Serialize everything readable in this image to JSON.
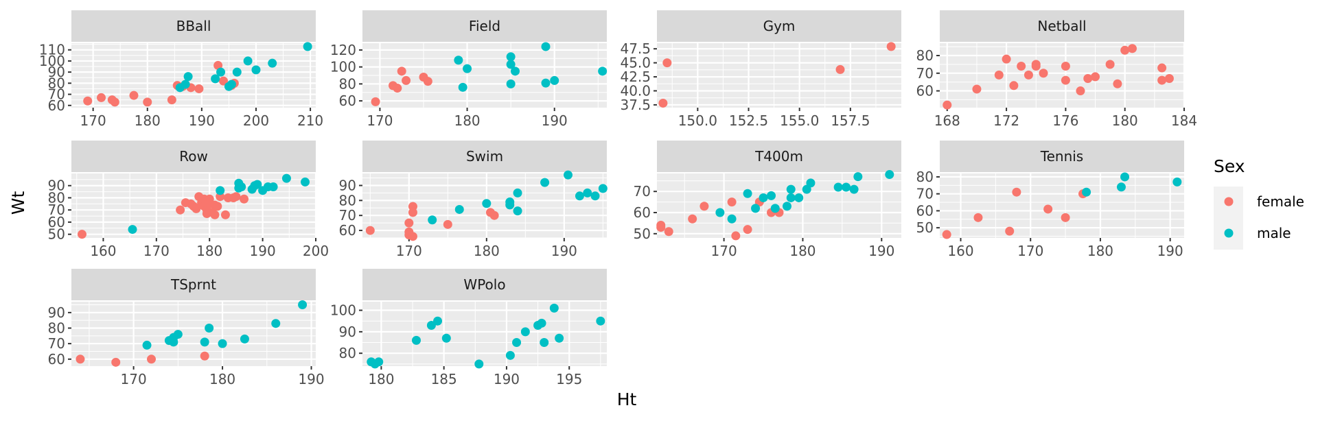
{
  "chart_data": {
    "type": "scatter",
    "xlabel": "Ht",
    "ylabel": "Wt",
    "legend": {
      "title": "Sex",
      "position": "right",
      "items": [
        {
          "name": "female",
          "color": "#F8766D"
        },
        {
          "name": "male",
          "color": "#00BFC4"
        }
      ]
    },
    "colors": {
      "female": "#F8766D",
      "male": "#00BFC4",
      "panel": "#EBEBEB",
      "strip": "#D9D9D9",
      "grid": "#FFFFFF"
    },
    "grid": true,
    "facets": [
      {
        "name": "BBall",
        "xlim": [
          166,
          211
        ],
        "ylim": [
          58,
          116
        ],
        "xticks": [
          "170",
          "180",
          "190",
          "200",
          "210"
        ],
        "yticks": [
          "60",
          "70",
          "80",
          "90",
          "100",
          "110"
        ],
        "female": [
          [
            169.0,
            64
          ],
          [
            171.5,
            67
          ],
          [
            174.0,
            63
          ],
          [
            173.5,
            65
          ],
          [
            177.5,
            69
          ],
          [
            180.0,
            63
          ],
          [
            184.5,
            65
          ],
          [
            185.5,
            78
          ],
          [
            186.5,
            77
          ],
          [
            188.0,
            76
          ],
          [
            189.5,
            75
          ],
          [
            193.0,
            96
          ],
          [
            194.0,
            82
          ],
          [
            195.5,
            78
          ],
          [
            196.0,
            80
          ]
        ],
        "male": [
          [
            186.0,
            76
          ],
          [
            187.0,
            79
          ],
          [
            187.5,
            86
          ],
          [
            192.5,
            84
          ],
          [
            193.5,
            90
          ],
          [
            195.0,
            77
          ],
          [
            195.5,
            79
          ],
          [
            196.5,
            90
          ],
          [
            198.5,
            100
          ],
          [
            200.0,
            92
          ],
          [
            203.0,
            98
          ],
          [
            209.5,
            113
          ]
        ]
      },
      {
        "name": "Field",
        "xlim": [
          168,
          196
        ],
        "ylim": [
          52,
          128
        ],
        "xticks": [
          "170",
          "180",
          "190"
        ],
        "yticks": [
          "60",
          "80",
          "100",
          "120"
        ],
        "female": [
          [
            169.5,
            59
          ],
          [
            171.5,
            78
          ],
          [
            172.0,
            75
          ],
          [
            172.5,
            95
          ],
          [
            173.0,
            84
          ],
          [
            175.0,
            88
          ],
          [
            175.5,
            83
          ]
        ],
        "male": [
          [
            179.0,
            108
          ],
          [
            179.5,
            76
          ],
          [
            180.0,
            98
          ],
          [
            185.0,
            80
          ],
          [
            185.0,
            112
          ],
          [
            185.0,
            103
          ],
          [
            185.5,
            95
          ],
          [
            189.0,
            81
          ],
          [
            189.0,
            124
          ],
          [
            190.0,
            84
          ],
          [
            195.5,
            95
          ]
        ]
      },
      {
        "name": "Gym",
        "xlim": [
          148.0,
          160.0
        ],
        "ylim": [
          37.0,
          48.5
        ],
        "xticks": [
          "150.0",
          "152.5",
          "155.0",
          "157.5"
        ],
        "yticks": [
          "37.5",
          "40.0",
          "42.5",
          "45.0",
          "47.5"
        ],
        "female": [
          [
            148.5,
            45.0
          ],
          [
            148.3,
            37.8
          ],
          [
            157.0,
            43.8
          ],
          [
            159.5,
            47.9
          ]
        ],
        "male": []
      },
      {
        "name": "Netball",
        "xlim": [
          167.5,
          184.0
        ],
        "ylim": [
          50.5,
          87
        ],
        "xticks": [
          "168",
          "172",
          "176",
          "180",
          "184"
        ],
        "yticks": [
          "60",
          "70",
          "80"
        ],
        "female": [
          [
            168.0,
            52
          ],
          [
            170.0,
            61
          ],
          [
            171.5,
            69
          ],
          [
            172.0,
            78
          ],
          [
            172.5,
            63
          ],
          [
            173.0,
            74
          ],
          [
            173.5,
            69
          ],
          [
            174.0,
            74
          ],
          [
            174.5,
            70
          ],
          [
            174.0,
            75
          ],
          [
            176.0,
            74
          ],
          [
            176.0,
            66
          ],
          [
            177.0,
            60
          ],
          [
            177.5,
            67
          ],
          [
            178.0,
            68
          ],
          [
            179.0,
            75
          ],
          [
            179.5,
            64
          ],
          [
            180.0,
            83
          ],
          [
            180.5,
            84
          ],
          [
            182.5,
            73
          ],
          [
            183.0,
            67
          ],
          [
            182.5,
            66
          ]
        ]
      },
      {
        "name": "Row",
        "xlim": [
          154,
          200
        ],
        "ylim": [
          47,
          100
        ],
        "xticks": [
          "160",
          "170",
          "180",
          "190",
          "200"
        ],
        "yticks": [
          "50",
          "60",
          "70",
          "80",
          "90"
        ],
        "female": [
          [
            156.0,
            50
          ],
          [
            174.5,
            70
          ],
          [
            175.5,
            76
          ],
          [
            176.5,
            75
          ],
          [
            177.0,
            73
          ],
          [
            177.5,
            71
          ],
          [
            178.0,
            81
          ],
          [
            178.5,
            76
          ],
          [
            179.0,
            79
          ],
          [
            179.0,
            73
          ],
          [
            179.5,
            70
          ],
          [
            179.5,
            67
          ],
          [
            180.0,
            79
          ],
          [
            180.0,
            75
          ],
          [
            180.5,
            68
          ],
          [
            181.0,
            74
          ],
          [
            181.0,
            66
          ],
          [
            181.5,
            73
          ],
          [
            182.0,
            81
          ],
          [
            183.0,
            66
          ],
          [
            183.5,
            80
          ],
          [
            184.5,
            80
          ],
          [
            185.0,
            81
          ],
          [
            186.5,
            79
          ]
        ],
        "male": [
          [
            165.5,
            54
          ],
          [
            182.0,
            86
          ],
          [
            185.5,
            92
          ],
          [
            185.5,
            88
          ],
          [
            186.0,
            89
          ],
          [
            188.0,
            87
          ],
          [
            188.5,
            90
          ],
          [
            189.0,
            91
          ],
          [
            190.0,
            86
          ],
          [
            191.0,
            89
          ],
          [
            192.0,
            89
          ],
          [
            194.5,
            96
          ],
          [
            198.0,
            93
          ]
        ]
      },
      {
        "name": "Swim",
        "xlim": [
          164,
          195.5
        ],
        "ylim": [
          55,
          98
        ],
        "xticks": [
          "170",
          "180",
          "190"
        ],
        "yticks": [
          "60",
          "70",
          "80",
          "90"
        ],
        "female": [
          [
            165.0,
            60
          ],
          [
            170.0,
            65
          ],
          [
            170.0,
            59
          ],
          [
            170.5,
            56
          ],
          [
            170.0,
            57
          ],
          [
            170.5,
            76
          ],
          [
            170.5,
            72
          ],
          [
            175.0,
            64
          ],
          [
            180.5,
            72
          ],
          [
            181.0,
            70
          ]
        ],
        "male": [
          [
            173.0,
            67
          ],
          [
            176.5,
            74
          ],
          [
            180.0,
            78
          ],
          [
            183.0,
            79
          ],
          [
            183.0,
            77
          ],
          [
            184.0,
            73
          ],
          [
            184.0,
            85
          ],
          [
            187.5,
            92
          ],
          [
            190.5,
            97
          ],
          [
            192.0,
            83
          ],
          [
            193.0,
            85
          ],
          [
            194.0,
            83
          ],
          [
            195.0,
            88
          ]
        ]
      },
      {
        "name": "T400m",
        "xlim": [
          161.5,
          192.5
        ],
        "ylim": [
          48,
          78.5
        ],
        "xticks": [
          "170",
          "180",
          "190"
        ],
        "yticks": [
          "50",
          "60",
          "70"
        ],
        "female": [
          [
            162.0,
            54
          ],
          [
            162.0,
            53
          ],
          [
            163.0,
            51
          ],
          [
            166.0,
            57
          ],
          [
            167.5,
            63
          ],
          [
            171.0,
            65
          ],
          [
            171.5,
            49
          ],
          [
            173.0,
            52
          ],
          [
            174.5,
            65
          ],
          [
            176.0,
            60
          ],
          [
            177.0,
            60
          ]
        ],
        "male": [
          [
            169.5,
            60
          ],
          [
            171.0,
            57
          ],
          [
            173.0,
            69
          ],
          [
            174.0,
            62
          ],
          [
            175.0,
            67
          ],
          [
            176.0,
            68
          ],
          [
            176.5,
            62
          ],
          [
            178.0,
            63
          ],
          [
            178.5,
            71
          ],
          [
            178.5,
            67
          ],
          [
            179.5,
            67
          ],
          [
            180.5,
            71
          ],
          [
            181.0,
            74
          ],
          [
            184.5,
            72
          ],
          [
            185.5,
            72
          ],
          [
            186.5,
            71
          ],
          [
            187.0,
            77
          ],
          [
            191.0,
            78
          ]
        ]
      },
      {
        "name": "Tennis",
        "xlim": [
          157,
          192
        ],
        "ylim": [
          44,
          82
        ],
        "xticks": [
          "160",
          "170",
          "180",
          "190"
        ],
        "yticks": [
          "50",
          "60",
          "70",
          "80"
        ],
        "female": [
          [
            158.0,
            46
          ],
          [
            162.5,
            56
          ],
          [
            167.0,
            48
          ],
          [
            168.0,
            71
          ],
          [
            172.5,
            61
          ],
          [
            175.0,
            56
          ],
          [
            177.5,
            70
          ]
        ],
        "male": [
          [
            178.0,
            71
          ],
          [
            183.0,
            74
          ],
          [
            183.5,
            80
          ],
          [
            191.0,
            77
          ]
        ]
      },
      {
        "name": "TSprnt",
        "xlim": [
          163,
          190.5
        ],
        "ylim": [
          55.5,
          97
        ],
        "xticks": [
          "170",
          "180",
          "190"
        ],
        "yticks": [
          "60",
          "70",
          "80",
          "90"
        ],
        "female": [
          [
            164.0,
            60
          ],
          [
            168.0,
            58
          ],
          [
            172.0,
            60
          ],
          [
            178.0,
            62
          ]
        ],
        "male": [
          [
            171.5,
            69
          ],
          [
            174.0,
            72
          ],
          [
            174.5,
            71
          ],
          [
            174.5,
            74
          ],
          [
            175.0,
            76
          ],
          [
            178.0,
            71
          ],
          [
            178.5,
            80
          ],
          [
            180.0,
            70
          ],
          [
            182.5,
            73
          ],
          [
            186.0,
            83
          ],
          [
            189.0,
            95
          ]
        ]
      },
      {
        "name": "WPolo",
        "xlim": [
          178.5,
          198.0
        ],
        "ylim": [
          74,
          104
        ],
        "xticks": [
          "180",
          "185",
          "190",
          "195"
        ],
        "yticks": [
          "80",
          "90",
          "100"
        ],
        "female": [],
        "male": [
          [
            179.2,
            76
          ],
          [
            179.5,
            75
          ],
          [
            179.8,
            76
          ],
          [
            182.8,
            86
          ],
          [
            184.0,
            93
          ],
          [
            184.5,
            95
          ],
          [
            185.2,
            87
          ],
          [
            187.8,
            75
          ],
          [
            190.3,
            79
          ],
          [
            190.8,
            85
          ],
          [
            191.5,
            90
          ],
          [
            192.5,
            93
          ],
          [
            192.8,
            94
          ],
          [
            193.0,
            85
          ],
          [
            193.8,
            101
          ],
          [
            194.2,
            87
          ],
          [
            197.5,
            95
          ]
        ]
      }
    ]
  }
}
